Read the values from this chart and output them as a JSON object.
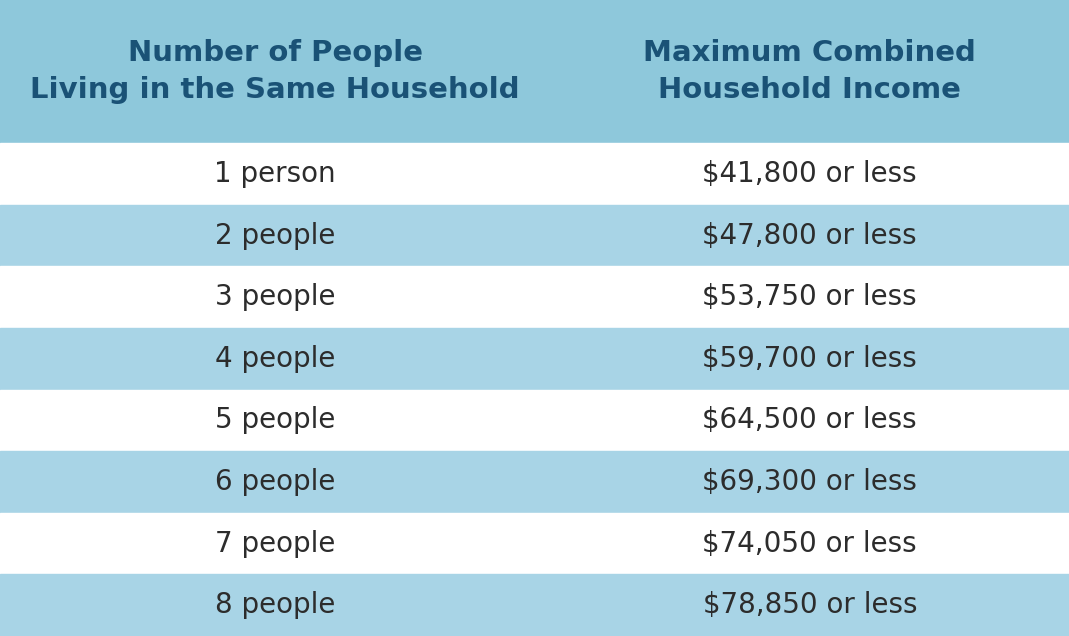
{
  "header_col1": "Number of People\nLiving in the Same Household",
  "header_col2": "Maximum Combined\nHousehold Income",
  "rows": [
    [
      "1 person",
      "$41,800 or less"
    ],
    [
      "2 people",
      "$47,800 or less"
    ],
    [
      "3 people",
      "$53,750 or less"
    ],
    [
      "4 people",
      "$59,700 or less"
    ],
    [
      "5 people",
      "$64,500 or less"
    ],
    [
      "6 people",
      "$69,300 or less"
    ],
    [
      "7 people",
      "$74,050 or less"
    ],
    [
      "8 people",
      "$78,850 or less"
    ]
  ],
  "header_bg": "#8ec8db",
  "row_bg_alt": "#a8d4e6",
  "row_bg_white": "#ffffff",
  "header_text_color": "#1a5276",
  "row_text_color": "#2c2c2c",
  "background_color": "#a8d4e6",
  "col_split": 0.515
}
